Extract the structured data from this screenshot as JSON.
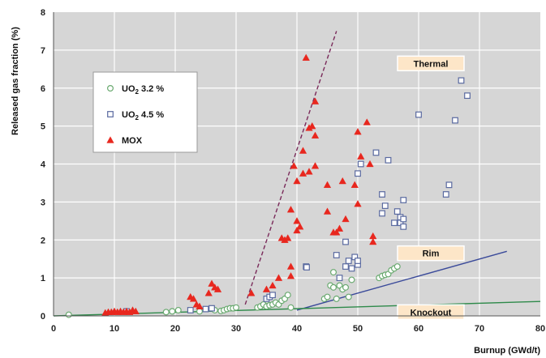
{
  "chart_data": {
    "type": "scatter",
    "xlabel": "Burnup (GWd/t)",
    "ylabel": "Released gas fraction (%)",
    "xlim": [
      0,
      80
    ],
    "ylim": [
      0,
      8
    ],
    "x_ticks": [
      0,
      10,
      20,
      30,
      40,
      50,
      60,
      70,
      80
    ],
    "y_ticks": [
      0,
      1,
      2,
      3,
      4,
      5,
      6,
      7,
      8
    ],
    "grid": true,
    "legend_position": "top-left",
    "series": [
      {
        "name": "UO2 3.2 %",
        "name_base": "UO",
        "name_sub": "2",
        "name_rest": " 3.2 %",
        "marker": "circle-open",
        "color": "#6aaa70",
        "points": [
          [
            2.5,
            0.03
          ],
          [
            18.5,
            0.1
          ],
          [
            19.5,
            0.12
          ],
          [
            20.5,
            0.15
          ],
          [
            24,
            0.12
          ],
          [
            26.5,
            0.15
          ],
          [
            27.5,
            0.13
          ],
          [
            28,
            0.15
          ],
          [
            28.5,
            0.18
          ],
          [
            29,
            0.2
          ],
          [
            29.5,
            0.2
          ],
          [
            30,
            0.22
          ],
          [
            33.5,
            0.22
          ],
          [
            34,
            0.25
          ],
          [
            34.5,
            0.3
          ],
          [
            35,
            0.25
          ],
          [
            35.5,
            0.28
          ],
          [
            36,
            0.3
          ],
          [
            36.5,
            0.35
          ],
          [
            37,
            0.3
          ],
          [
            37.5,
            0.4
          ],
          [
            38,
            0.45
          ],
          [
            38.5,
            0.55
          ],
          [
            39,
            0.22
          ],
          [
            44.5,
            0.45
          ],
          [
            45,
            0.5
          ],
          [
            45.5,
            0.8
          ],
          [
            46,
            0.75
          ],
          [
            46,
            1.15
          ],
          [
            46.5,
            0.45
          ],
          [
            47,
            0.8
          ],
          [
            47.5,
            0.7
          ],
          [
            48,
            0.75
          ],
          [
            48.5,
            0.5
          ],
          [
            49,
            0.95
          ],
          [
            53.5,
            1.0
          ],
          [
            54,
            1.05
          ],
          [
            54.5,
            1.08
          ],
          [
            55,
            1.1
          ],
          [
            55.5,
            1.2
          ],
          [
            56,
            1.25
          ],
          [
            56.5,
            1.3
          ]
        ]
      },
      {
        "name": "UO2 4.5 %",
        "name_base": "UO",
        "name_sub": "2",
        "name_rest": " 4.5 %",
        "marker": "square-open",
        "color": "#5a6aa0",
        "points": [
          [
            12,
            0.12
          ],
          [
            22.5,
            0.15
          ],
          [
            25,
            0.18
          ],
          [
            26,
            0.2
          ],
          [
            35,
            0.45
          ],
          [
            35.5,
            0.5
          ],
          [
            36,
            0.55
          ],
          [
            41.5,
            1.3
          ],
          [
            41.6,
            1.28
          ],
          [
            46.5,
            1.6
          ],
          [
            47,
            1.0
          ],
          [
            48,
            1.3
          ],
          [
            48,
            1.95
          ],
          [
            48.5,
            1.45
          ],
          [
            49,
            1.25
          ],
          [
            49.5,
            1.55
          ],
          [
            50,
            1.35
          ],
          [
            50,
            1.45
          ],
          [
            50,
            3.75
          ],
          [
            50.5,
            4.0
          ],
          [
            53,
            4.3
          ],
          [
            54,
            3.2
          ],
          [
            54,
            2.7
          ],
          [
            54.5,
            2.9
          ],
          [
            55,
            4.1
          ],
          [
            56,
            2.45
          ],
          [
            56.5,
            2.75
          ],
          [
            57,
            2.45
          ],
          [
            57,
            2.6
          ],
          [
            57.5,
            2.35
          ],
          [
            57.5,
            2.55
          ],
          [
            57.5,
            3.05
          ],
          [
            60,
            5.3
          ],
          [
            64.5,
            3.2
          ],
          [
            65,
            3.45
          ],
          [
            66,
            5.15
          ],
          [
            67,
            6.2
          ],
          [
            68,
            5.8
          ]
        ]
      },
      {
        "name": "MOX",
        "marker": "triangle-filled",
        "color": "#e8271e",
        "points": [
          [
            8.5,
            0.08
          ],
          [
            9,
            0.1
          ],
          [
            9.5,
            0.1
          ],
          [
            10,
            0.12
          ],
          [
            10.5,
            0.1
          ],
          [
            11,
            0.12
          ],
          [
            11.5,
            0.1
          ],
          [
            12,
            0.12
          ],
          [
            12.5,
            0.1
          ],
          [
            13,
            0.15
          ],
          [
            13.5,
            0.12
          ],
          [
            22.5,
            0.5
          ],
          [
            23,
            0.45
          ],
          [
            23.5,
            0.3
          ],
          [
            24,
            0.25
          ],
          [
            25.5,
            0.6
          ],
          [
            26,
            0.85
          ],
          [
            26.5,
            0.75
          ],
          [
            27,
            0.7
          ],
          [
            32.5,
            0.6
          ],
          [
            35,
            0.7
          ],
          [
            36,
            0.8
          ],
          [
            37,
            1.0
          ],
          [
            37.5,
            2.05
          ],
          [
            38,
            2.0
          ],
          [
            38.5,
            2.05
          ],
          [
            39,
            1.3
          ],
          [
            39,
            1.05
          ],
          [
            39,
            2.8
          ],
          [
            39.5,
            3.95
          ],
          [
            40,
            2.25
          ],
          [
            40,
            2.5
          ],
          [
            40,
            3.55
          ],
          [
            40.5,
            2.35
          ],
          [
            41,
            3.75
          ],
          [
            41,
            4.35
          ],
          [
            41.5,
            6.8
          ],
          [
            42,
            4.95
          ],
          [
            42,
            3.8
          ],
          [
            42.5,
            5.0
          ],
          [
            43,
            4.75
          ],
          [
            43,
            5.65
          ],
          [
            43,
            3.95
          ],
          [
            45,
            2.75
          ],
          [
            45,
            3.45
          ],
          [
            46,
            2.2
          ],
          [
            46.5,
            2.2
          ],
          [
            47,
            2.3
          ],
          [
            47.5,
            3.55
          ],
          [
            48,
            2.55
          ],
          [
            49.5,
            3.45
          ],
          [
            50,
            4.85
          ],
          [
            50,
            2.95
          ],
          [
            50.5,
            4.2
          ],
          [
            51.5,
            5.1
          ],
          [
            52,
            4.0
          ],
          [
            52.5,
            1.95
          ],
          [
            52.5,
            2.1
          ]
        ]
      }
    ],
    "lines": [
      {
        "label": "",
        "color": "#7a2a5a",
        "style": "dashed",
        "points": [
          [
            31.5,
            0.3
          ],
          [
            46.5,
            7.5
          ]
        ]
      },
      {
        "label": "Rim",
        "color": "#3a4a9a",
        "style": "solid",
        "points": [
          [
            40,
            0.15
          ],
          [
            74.5,
            1.7
          ]
        ]
      },
      {
        "label": "Knockout",
        "color": "#2e8a4a",
        "style": "solid",
        "points": [
          [
            0,
            0.0
          ],
          [
            80,
            0.38
          ]
        ]
      }
    ],
    "region_labels": [
      {
        "text": "Thermal",
        "x": 62,
        "y": 6.65
      },
      {
        "text": "Rim",
        "x": 62,
        "y": 1.65
      },
      {
        "text": "Knockout",
        "x": 62,
        "y": 0.1
      }
    ]
  },
  "colors": {
    "plot_background": "#d6d6d6",
    "gridline": "#ffffff",
    "label_box": "#fde6c8",
    "legend_background": "#ffffff"
  }
}
